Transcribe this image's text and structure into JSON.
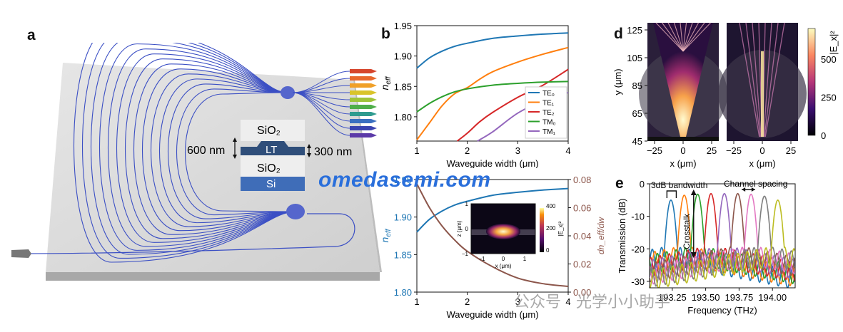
{
  "panel_labels": {
    "a": "a",
    "b": "b",
    "d": "d",
    "e": "e"
  },
  "panel_a": {
    "cross_section": {
      "top_cladding": "SiO₂",
      "core": "LT",
      "bottom_cladding": "SiO₂",
      "substrate": "Si",
      "dim_total": "600 nm",
      "dim_slab": "300 nm"
    }
  },
  "chart_data": [
    {
      "id": "b-top",
      "type": "line",
      "xlabel": "Waveguide width (μm)",
      "ylabel": "n_eff",
      "xlim": [
        1,
        4
      ],
      "ylim": [
        1.76,
        1.95
      ],
      "xticks": [
        "1",
        "2",
        "3",
        "4"
      ],
      "yticks": [
        "1.80",
        "1.85",
        "1.90",
        "1.95"
      ],
      "series": [
        {
          "name": "TE0",
          "color": "#1f77b4",
          "x": [
            1,
            1.25,
            1.5,
            1.75,
            2,
            2.5,
            3,
            3.5,
            4
          ],
          "y": [
            1.88,
            1.897,
            1.908,
            1.916,
            1.921,
            1.929,
            1.933,
            1.936,
            1.938
          ]
        },
        {
          "name": "TE1",
          "color": "#ff7f0e",
          "x": [
            1,
            1.25,
            1.5,
            1.75,
            2,
            2.25,
            2.5,
            3,
            3.5,
            4
          ],
          "y": [
            1.762,
            1.79,
            1.818,
            1.838,
            1.848,
            1.862,
            1.874,
            1.89,
            1.903,
            1.914
          ]
        },
        {
          "name": "TE2",
          "color": "#d62728",
          "x": [
            1.8,
            2,
            2.25,
            2.5,
            3,
            3.5,
            4
          ],
          "y": [
            1.76,
            1.773,
            1.792,
            1.807,
            1.832,
            1.852,
            1.878
          ]
        },
        {
          "name": "TM0",
          "color": "#2ca02c",
          "x": [
            1,
            1.25,
            1.5,
            1.75,
            2,
            2.5,
            3,
            3.5,
            4
          ],
          "y": [
            1.808,
            1.822,
            1.833,
            1.841,
            1.846,
            1.852,
            1.855,
            1.857,
            1.858
          ]
        },
        {
          "name": "TM1",
          "color": "#9467bd",
          "x": [
            2.2,
            2.5,
            3,
            3.5,
            4
          ],
          "y": [
            1.76,
            1.775,
            1.806,
            1.826,
            1.84
          ]
        }
      ],
      "legend": [
        "TE₀",
        "TE₁",
        "TE₂",
        "TM₀",
        "TM₁"
      ],
      "legend_position": "lower-right"
    },
    {
      "id": "b-bottom",
      "type": "line",
      "xlabel": "Waveguide width (μm)",
      "ylabel": "n_eff",
      "y2label": "dn_eff/dw",
      "xlim": [
        1,
        4
      ],
      "ylim": [
        1.8,
        1.95
      ],
      "y2lim": [
        0,
        0.08
      ],
      "xticks": [
        "1",
        "2",
        "3",
        "4"
      ],
      "yticks": [
        "1.80",
        "1.85",
        "1.90",
        "1.95"
      ],
      "y2ticks": [
        "0.00",
        "0.02",
        "0.04",
        "0.06",
        "0.08"
      ],
      "series": [
        {
          "name": "n_eff",
          "axis": "left",
          "color": "#1f77b4",
          "x": [
            1,
            1.25,
            1.5,
            1.75,
            2,
            2.5,
            3,
            3.5,
            4
          ],
          "y": [
            1.88,
            1.897,
            1.908,
            1.916,
            1.921,
            1.929,
            1.933,
            1.936,
            1.938
          ]
        },
        {
          "name": "dn_eff/dw",
          "axis": "right",
          "color": "#8c564b",
          "x": [
            1,
            1.25,
            1.5,
            1.75,
            2,
            2.5,
            3,
            3.5,
            4
          ],
          "y": [
            0.077,
            0.06,
            0.047,
            0.037,
            0.029,
            0.018,
            0.01,
            0.006,
            0.004
          ]
        }
      ],
      "inset": {
        "xlabel": "x (μm)",
        "ylabel": "z (μm)",
        "xticks": [
          "−1",
          "0",
          "1"
        ],
        "yticks": [
          "−1",
          "0",
          "1"
        ],
        "colorbar_label": "|E_x|²",
        "colorbar_ticks": [
          "0",
          "200",
          "400"
        ]
      }
    },
    {
      "id": "d",
      "type": "heatmap",
      "xlabel": "x (μm)",
      "ylabel": "y (μm)",
      "xticks": [
        "−25",
        "0",
        "25"
      ],
      "yticks": [
        "45",
        "65",
        "85",
        "105",
        "125"
      ],
      "colorbar_label": "|E_x|²",
      "colorbar_ticks": [
        "0",
        "250",
        "500"
      ]
    },
    {
      "id": "e",
      "type": "line",
      "xlabel": "Frequency (THz)",
      "ylabel": "Transmission (dB)",
      "xlim": [
        193.08,
        194.17
      ],
      "ylim": [
        -32,
        0
      ],
      "xticks": [
        "193.25",
        "193.50",
        "193.75",
        "194.00"
      ],
      "yticks": [
        "0",
        "-10",
        "-20",
        "-30"
      ],
      "channel_centers": [
        193.24,
        193.34,
        193.44,
        193.54,
        193.64,
        193.74,
        193.84,
        193.94,
        194.04
      ],
      "peak_dB": [
        -5,
        -3.5,
        -3.2,
        -3,
        -3,
        -3,
        -3.2,
        -3.8,
        -5
      ],
      "colors": [
        "#1f77b4",
        "#ff7f0e",
        "#2ca02c",
        "#d62728",
        "#9467bd",
        "#8c564b",
        "#e377c2",
        "#7f7f7f",
        "#bcbd22"
      ],
      "annotations": [
        "3dB bandwidth",
        "Channel spacing",
        "Crosstalk"
      ]
    }
  ],
  "watermark": "omedasemi.com",
  "wechat_watermark": "公众号 · 光学小小助手"
}
